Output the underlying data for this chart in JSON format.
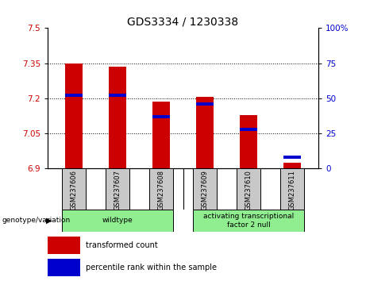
{
  "title": "GDS3334 / 1230338",
  "samples": [
    "GSM237606",
    "GSM237607",
    "GSM237608",
    "GSM237609",
    "GSM237610",
    "GSM237611"
  ],
  "red_values": [
    7.348,
    7.335,
    7.185,
    7.205,
    7.13,
    6.925
  ],
  "blue_values_pct": [
    52,
    52,
    37,
    46,
    28,
    8
  ],
  "ylim_left": [
    6.9,
    7.5
  ],
  "ylim_right": [
    0,
    100
  ],
  "yticks_left": [
    6.9,
    7.05,
    7.2,
    7.35,
    7.5
  ],
  "yticks_right": [
    0,
    25,
    50,
    75,
    100
  ],
  "ytick_labels_left": [
    "6.9",
    "7.05",
    "7.2",
    "7.35",
    "7.5"
  ],
  "ytick_labels_right": [
    "0",
    "25",
    "50",
    "75",
    "100%"
  ],
  "bar_width": 0.4,
  "red_color": "#CC0000",
  "blue_color": "#0000CC",
  "grid_color": "#000000",
  "genotype_groups": [
    {
      "label": "wildtype",
      "start": 0,
      "end": 2
    },
    {
      "label": "activating transcriptional\nfactor 2 null",
      "start": 3,
      "end": 5
    }
  ],
  "genotype_bg": "#90EE90",
  "sample_label_bg": "#C8C8C8",
  "xlabel_left": "genotype/variation",
  "legend_items": [
    "transformed count",
    "percentile rank within the sample"
  ],
  "legend_colors": [
    "#CC0000",
    "#0000CC"
  ],
  "base_value": 6.9,
  "tick_label_color_left": "#CC0000",
  "tick_label_color_right": "#0000CC",
  "title_fontsize": 10,
  "tick_fontsize": 7.5,
  "sample_fontsize": 6,
  "legend_fontsize": 7,
  "genotype_fontsize": 6.5
}
